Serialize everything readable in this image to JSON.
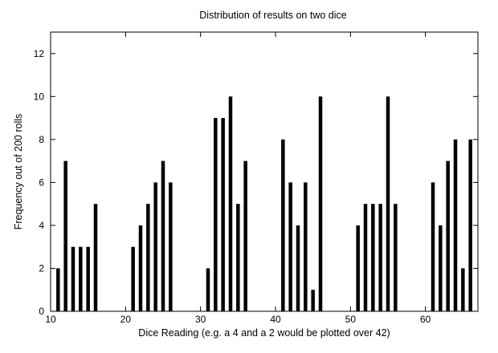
{
  "chart_data": {
    "type": "bar",
    "title": "Distribution of results on two dice",
    "xlabel": "Dice Reading (e.g. a 4 and a 2 would be plotted over 42)",
    "ylabel": "Frequency out of 200 rolls",
    "xlim": [
      10,
      67
    ],
    "ylim": [
      0,
      13
    ],
    "xticks": [
      10,
      20,
      30,
      40,
      50,
      60
    ],
    "yticks": [
      0,
      2,
      4,
      6,
      8,
      10,
      12
    ],
    "grid": false,
    "legend": "none",
    "bar_color": "#000000",
    "x": [
      11,
      12,
      13,
      14,
      15,
      16,
      21,
      22,
      23,
      24,
      25,
      26,
      31,
      32,
      33,
      34,
      35,
      36,
      41,
      42,
      43,
      44,
      45,
      46,
      51,
      52,
      53,
      54,
      55,
      56,
      61,
      62,
      63,
      64,
      65,
      66
    ],
    "values": [
      2,
      7,
      3,
      3,
      3,
      5,
      3,
      4,
      5,
      6,
      7,
      6,
      2,
      9,
      9,
      10,
      5,
      7,
      8,
      6,
      4,
      6,
      1,
      10,
      4,
      5,
      5,
      5,
      10,
      5,
      6,
      4,
      7,
      8,
      2,
      8
    ]
  }
}
